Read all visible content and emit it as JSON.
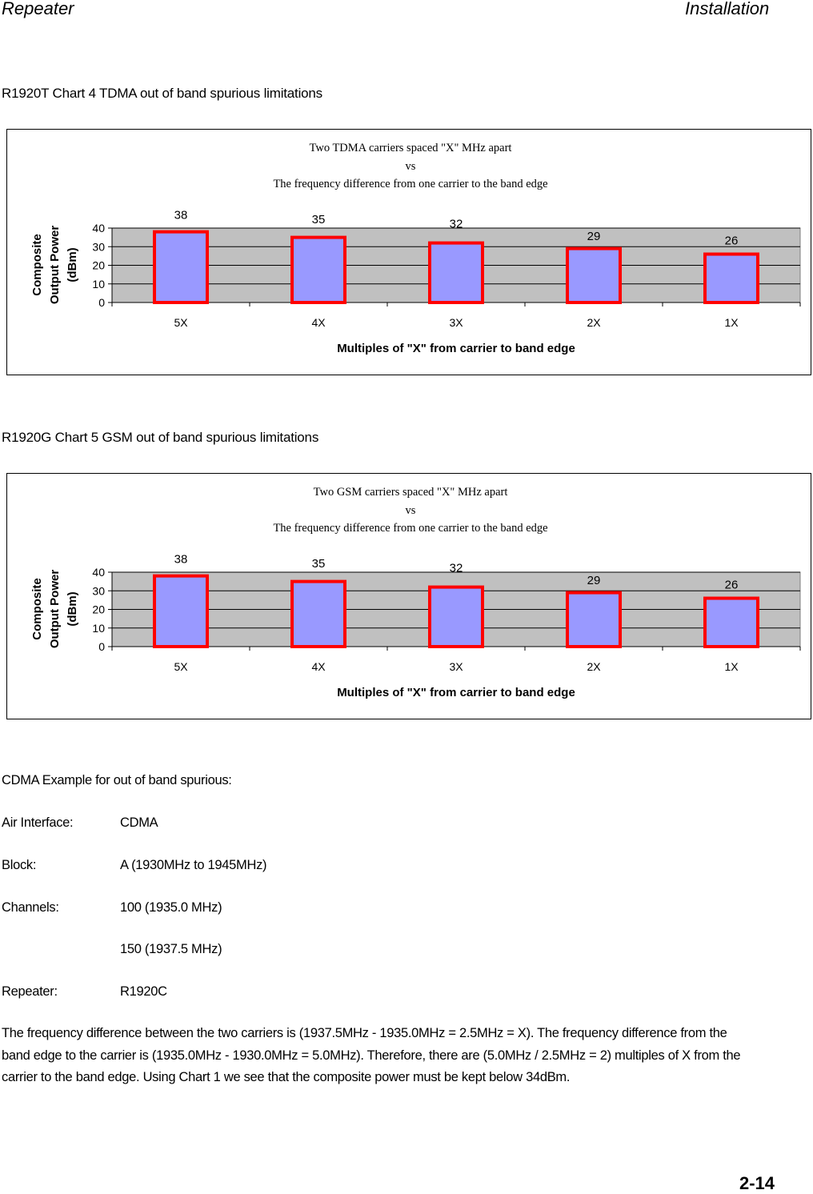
{
  "header": {
    "left": "Repeater",
    "right": "Installation"
  },
  "charts": [
    {
      "caption": "R1920T   Chart 4 TDMA out of band spurious limitations",
      "title_lines": [
        "Two TDMA carriers spaced \"X\" MHz apart",
        "vs",
        "The frequency difference from one carrier to the band edge"
      ]
    },
    {
      "caption": "R1920G   Chart 5 GSM out of band spurious limitations",
      "title_lines": [
        "Two GSM carriers spaced \"X\" MHz apart",
        "vs",
        "The frequency difference from one carrier to the band edge"
      ]
    }
  ],
  "chart_data": [
    {
      "type": "bar",
      "title": "Two TDMA carriers spaced \"X\" MHz apart vs The frequency difference from one carrier to the band edge",
      "categories": [
        "5X",
        "4X",
        "3X",
        "2X",
        "1X"
      ],
      "values": [
        38,
        35,
        32,
        29,
        26
      ],
      "xlabel": "Multiples of \"X\" from carrier to band edge",
      "ylabel_lines": [
        "Composite",
        "Output Power",
        "(dBm)"
      ],
      "ylim": [
        0,
        40
      ],
      "yticks": [
        "0",
        "10",
        "20",
        "30",
        "40"
      ],
      "grid": true,
      "colors": {
        "fill": "#9999ff",
        "stroke": "#ff0000",
        "plot_bg": "#c0c0c0"
      }
    },
    {
      "type": "bar",
      "title": "Two GSM carriers spaced \"X\" MHz apart vs The frequency difference from one carrier to the band edge",
      "categories": [
        "5X",
        "4X",
        "3X",
        "2X",
        "1X"
      ],
      "values": [
        38,
        35,
        32,
        29,
        26
      ],
      "xlabel": "Multiples of \"X\" from carrier to band edge",
      "ylabel_lines": [
        "Composite",
        "Output Power",
        "(dBm)"
      ],
      "ylim": [
        0,
        40
      ],
      "yticks": [
        "0",
        "10",
        "20",
        "30",
        "40"
      ],
      "grid": true,
      "colors": {
        "fill": "#9999ff",
        "stroke": "#ff0000",
        "plot_bg": "#c0c0c0"
      }
    }
  ],
  "example": {
    "heading": "CDMA Example for out of band spurious:",
    "rows": [
      {
        "label": "Air Interface:",
        "value": "CDMA"
      },
      {
        "label": "Block:",
        "value": "A (1930MHz to 1945MHz)"
      },
      {
        "label": "Channels:",
        "value": "100 (1935.0 MHz)"
      },
      {
        "label": "",
        "value": "150 (1937.5 MHz)"
      },
      {
        "label": "Repeater:",
        "value": "R1920C"
      }
    ],
    "paragraph": "The frequency difference between the two carriers is (1937.5MHz - 1935.0MHz = 2.5MHz = X).  The frequency difference from the band edge to the carrier is (1935.0MHz - 1930.0MHz = 5.0MHz).  Therefore, there are (5.0MHz /  2.5MHz = 2) multiples of X from the carrier to the band edge.  Using Chart 1 we see that the composite power must be kept below 34dBm."
  },
  "page_number": "2-14"
}
